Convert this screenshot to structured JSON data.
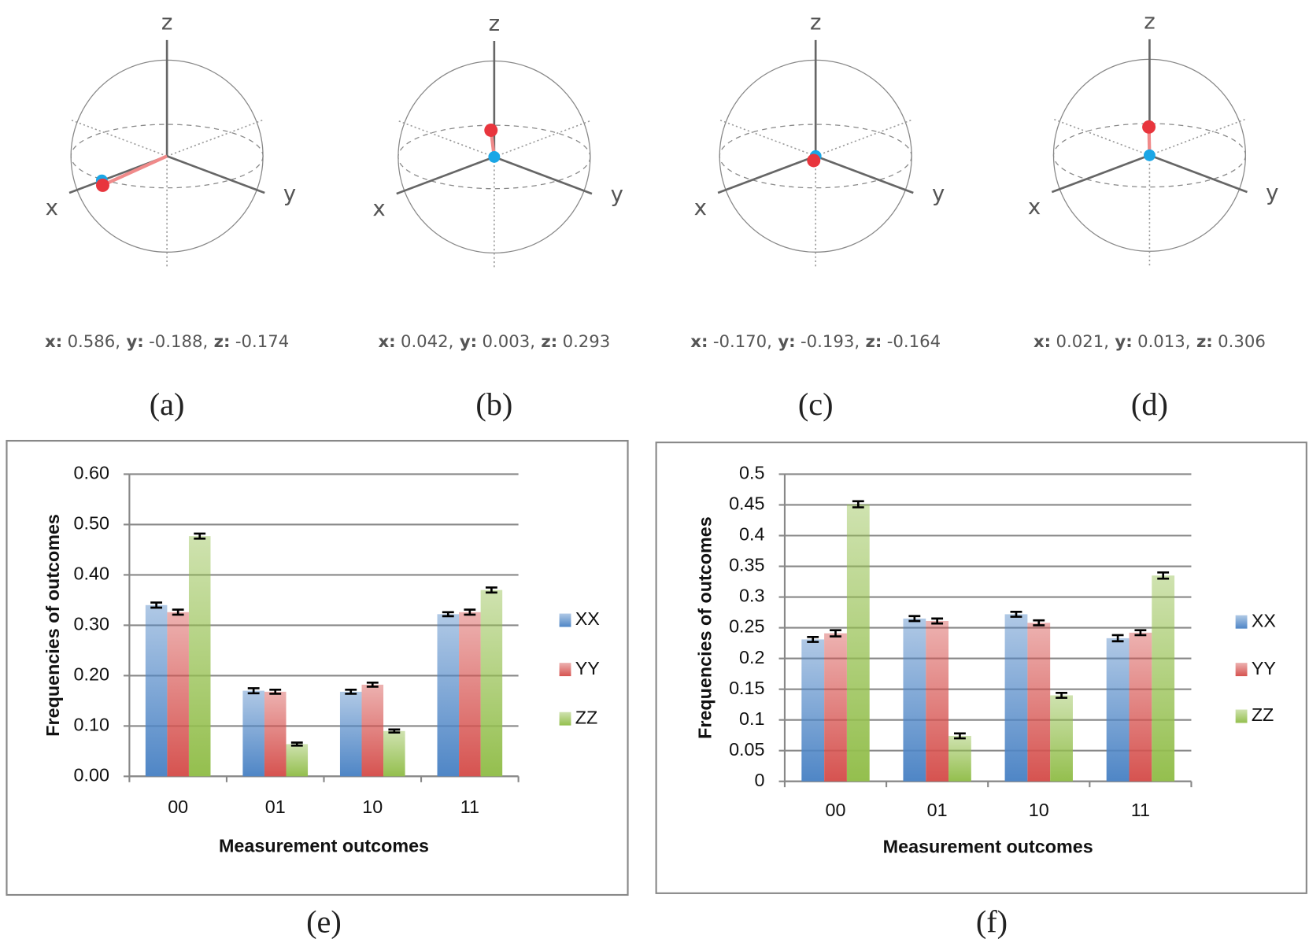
{
  "spheres": [
    {
      "axis_labels": [
        "x",
        "y",
        "z"
      ],
      "caption": "(a)",
      "coords": [
        {
          "name": "x:",
          "value": 0.586,
          "label": "0.586,"
        },
        {
          "name": "y:",
          "value": -0.188,
          "label": "-0.188,"
        },
        {
          "name": "z:",
          "value": -0.174,
          "label": "-0.174"
        }
      ]
    },
    {
      "axis_labels": [
        "x",
        "y",
        "z"
      ],
      "caption": "(b)",
      "coords": [
        {
          "name": "x:",
          "value": 0.042,
          "label": "0.042,"
        },
        {
          "name": "y:",
          "value": 0.003,
          "label": "0.003,"
        },
        {
          "name": "z:",
          "value": 0.293,
          "label": "0.293"
        }
      ]
    },
    {
      "axis_labels": [
        "x",
        "y",
        "z"
      ],
      "caption": "(c)",
      "coords": [
        {
          "name": "x:",
          "value": -0.17,
          "label": "-0.170,"
        },
        {
          "name": "y:",
          "value": -0.193,
          "label": "-0.193,"
        },
        {
          "name": "z:",
          "value": -0.164,
          "label": "-0.164"
        }
      ]
    },
    {
      "axis_labels": [
        "x",
        "y",
        "z"
      ],
      "caption": "(d)",
      "coords": [
        {
          "name": "x:",
          "value": 0.021,
          "label": "0.021,"
        },
        {
          "name": "y:",
          "value": 0.013,
          "label": "0.013,"
        },
        {
          "name": "z:",
          "value": 0.306,
          "label": "0.306"
        }
      ]
    }
  ],
  "chart_data": [
    {
      "type": "bar",
      "caption": "(e)",
      "x_label": "Measurement outcomes",
      "y_label": "Frequencies of outcomes",
      "categories": [
        "00",
        "01",
        "10",
        "11"
      ],
      "series": [
        {
          "name": "XX",
          "color": "#4f86c6",
          "values": [
            0.34,
            0.17,
            0.168,
            0.322
          ],
          "errors": [
            0.005,
            0.005,
            0.004,
            0.004
          ]
        },
        {
          "name": "YY",
          "color": "#d65350",
          "values": [
            0.326,
            0.168,
            0.182,
            0.326
          ],
          "errors": [
            0.005,
            0.004,
            0.004,
            0.005
          ]
        },
        {
          "name": "ZZ",
          "color": "#94bf4e",
          "values": [
            0.477,
            0.064,
            0.09,
            0.37
          ],
          "errors": [
            0.005,
            0.003,
            0.003,
            0.005
          ]
        }
      ],
      "ylim": [
        0,
        0.6
      ],
      "yticks": [
        {
          "value": 0,
          "label": "0.00"
        },
        {
          "value": 0.1,
          "label": "0.10"
        },
        {
          "value": 0.2,
          "label": "0.20"
        },
        {
          "value": 0.3,
          "label": "0.30"
        },
        {
          "value": 0.4,
          "label": "0.40"
        },
        {
          "value": 0.5,
          "label": "0.50"
        },
        {
          "value": 0.6,
          "label": "0.60"
        }
      ],
      "grid": true,
      "legend": "right"
    },
    {
      "type": "bar",
      "caption": "(f)",
      "x_label": "Measurement outcomes",
      "y_label": "Frequencies of outcomes",
      "categories": [
        "00",
        "01",
        "10",
        "11"
      ],
      "series": [
        {
          "name": "XX",
          "color": "#4f86c6",
          "values": [
            0.231,
            0.265,
            0.272,
            0.233
          ],
          "errors": [
            0.004,
            0.004,
            0.004,
            0.005
          ]
        },
        {
          "name": "YY",
          "color": "#d65350",
          "values": [
            0.241,
            0.261,
            0.258,
            0.242
          ],
          "errors": [
            0.005,
            0.004,
            0.004,
            0.004
          ]
        },
        {
          "name": "ZZ",
          "color": "#94bf4e",
          "values": [
            0.451,
            0.074,
            0.14,
            0.335
          ],
          "errors": [
            0.005,
            0.004,
            0.004,
            0.005
          ]
        }
      ],
      "ylim": [
        0,
        0.5
      ],
      "yticks": [
        0,
        0.05,
        0.1,
        0.15,
        0.2,
        0.25,
        0.3,
        0.35,
        0.4,
        0.45,
        0.5
      ],
      "grid": true,
      "legend": "right"
    }
  ]
}
